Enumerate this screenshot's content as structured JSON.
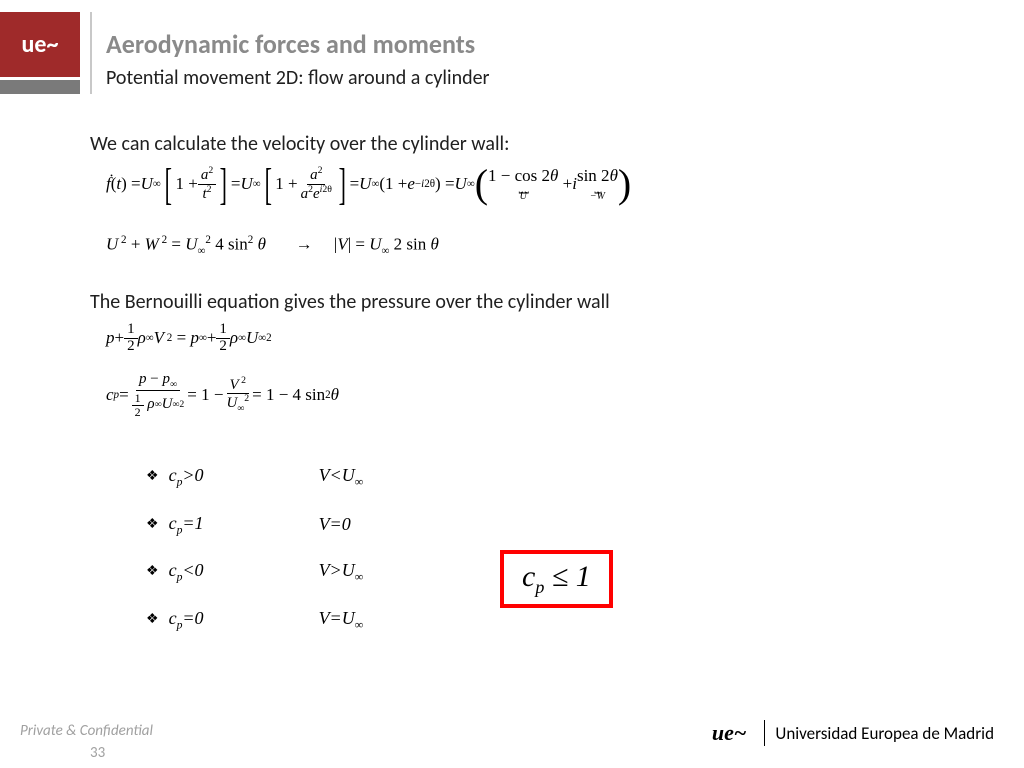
{
  "header": {
    "title": "Aerodynamic forces and moments",
    "subtitle": "Potential movement 2D: flow around a cylinder"
  },
  "text": {
    "line1": "We can calculate the velocity over the cylinder wall:",
    "line2": "The Bernouilli equation gives the pressure over the cylinder wall"
  },
  "bullets": [
    {
      "cond": "c",
      "sub": "p",
      "op": ">0",
      "vel": "V<U",
      "vsub": "∞"
    },
    {
      "cond": "c",
      "sub": "p",
      "op": "=1",
      "vel": "V=0",
      "vsub": ""
    },
    {
      "cond": "c",
      "sub": "p",
      "op": "<0",
      "vel": "V>U",
      "vsub": "∞"
    },
    {
      "cond": "c",
      "sub": "p",
      "op": "=0",
      "vel": "V=U",
      "vsub": "∞"
    }
  ],
  "boxed": {
    "var": "c",
    "sub": "p",
    "rel": " ≤ 1"
  },
  "footer": {
    "confidential": "Private & Confidential",
    "page": "33",
    "uni_logo": "ue~",
    "uni_name": "Universidad Europea de Madrid"
  },
  "colors": {
    "logo_bg": "#9f2a2a",
    "title_color": "#8a8a8a",
    "box_border": "#ff0000"
  }
}
